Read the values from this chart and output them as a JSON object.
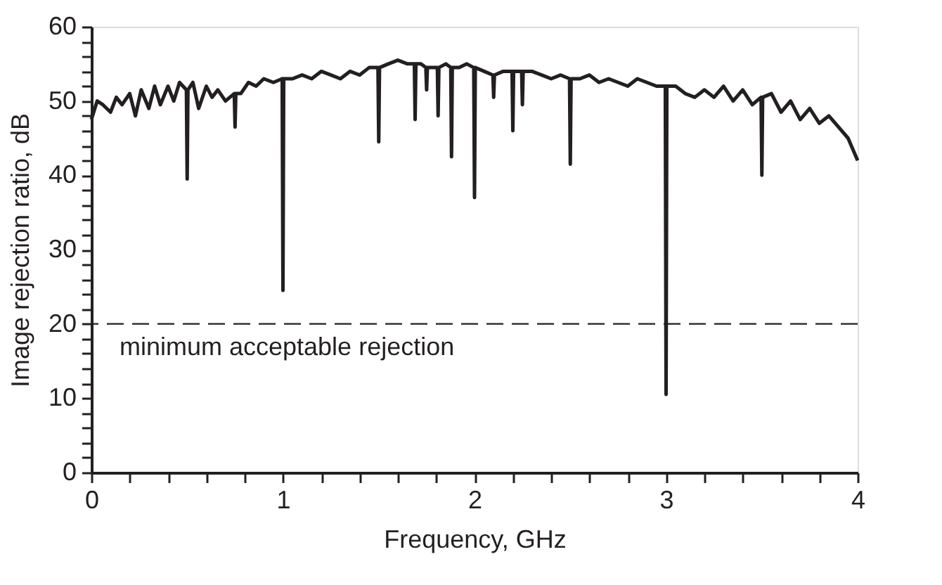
{
  "chart_data": {
    "type": "line",
    "xlabel": "Frequency, GHz",
    "ylabel": "Image rejection ratio, dB",
    "xlim": [
      0,
      4
    ],
    "ylim": [
      0,
      60
    ],
    "xticks": [
      0,
      {
        "value": 0.2,
        "label": null
      },
      {
        "value": 0.4,
        "label": null
      },
      {
        "value": 0.6,
        "label": null
      },
      {
        "value": 0.8,
        "label": null
      },
      1,
      {
        "value": 1.2,
        "label": null
      },
      {
        "value": 1.4,
        "label": null
      },
      {
        "value": 1.6,
        "label": null
      },
      {
        "value": 1.8,
        "label": null
      },
      2,
      {
        "value": 2.2,
        "label": null
      },
      {
        "value": 2.4,
        "label": null
      },
      {
        "value": 2.6,
        "label": null
      },
      {
        "value": 2.8,
        "label": null
      },
      3,
      {
        "value": 3.2,
        "label": null
      },
      {
        "value": 3.4,
        "label": null
      },
      {
        "value": 3.6,
        "label": null
      },
      {
        "value": 3.8,
        "label": null
      },
      4
    ],
    "yticks": [
      0,
      {
        "value": 2,
        "label": null
      },
      {
        "value": 4,
        "label": null
      },
      {
        "value": 6,
        "label": null
      },
      {
        "value": 8,
        "label": null
      },
      10,
      {
        "value": 12,
        "label": null
      },
      {
        "value": 14,
        "label": null
      },
      {
        "value": 16,
        "label": null
      },
      {
        "value": 18,
        "label": null
      },
      20,
      {
        "value": 22,
        "label": null
      },
      {
        "value": 24,
        "label": null
      },
      {
        "value": 26,
        "label": null
      },
      {
        "value": 28,
        "label": null
      },
      30,
      {
        "value": 32,
        "label": null
      },
      {
        "value": 34,
        "label": null
      },
      {
        "value": 36,
        "label": null
      },
      {
        "value": 38,
        "label": null
      },
      40,
      {
        "value": 42,
        "label": null
      },
      {
        "value": 44,
        "label": null
      },
      {
        "value": 46,
        "label": null
      },
      {
        "value": 48,
        "label": null
      },
      50,
      {
        "value": 52,
        "label": null
      },
      {
        "value": 54,
        "label": null
      },
      {
        "value": 56,
        "label": null
      },
      {
        "value": 58,
        "label": null
      },
      60
    ],
    "grid": false,
    "legend": false,
    "marker": "none",
    "line_style": "solid",
    "ref_lines": [
      {
        "axis": "y",
        "value": 20,
        "line_style": "dashed",
        "color": "#231f20"
      }
    ],
    "annotations": [
      "minimum acceptable rejection"
    ],
    "series": [
      {
        "color": "#231f20",
        "x": [
          0,
          0.03,
          0.06,
          0.1,
          0.13,
          0.16,
          0.2,
          0.23,
          0.26,
          0.3,
          0.33,
          0.36,
          0.4,
          0.43,
          0.46,
          0.496,
          0.5,
          0.504,
          0.53,
          0.56,
          0.6,
          0.63,
          0.66,
          0.7,
          0.746,
          0.75,
          0.754,
          0.78,
          0.82,
          0.86,
          0.9,
          0.95,
          0.996,
          1.0,
          1.004,
          1.05,
          1.1,
          1.15,
          1.2,
          1.25,
          1.3,
          1.35,
          1.4,
          1.45,
          1.496,
          1.5,
          1.504,
          1.55,
          1.6,
          1.65,
          1.686,
          1.69,
          1.694,
          1.72,
          1.746,
          1.75,
          1.754,
          1.78,
          1.806,
          1.81,
          1.814,
          1.85,
          1.876,
          1.88,
          1.884,
          1.92,
          1.96,
          1.996,
          2.0,
          2.004,
          2.05,
          2.096,
          2.1,
          2.104,
          2.15,
          2.196,
          2.2,
          2.204,
          2.246,
          2.25,
          2.254,
          2.3,
          2.35,
          2.4,
          2.45,
          2.496,
          2.5,
          2.504,
          2.55,
          2.6,
          2.65,
          2.7,
          2.75,
          2.8,
          2.85,
          2.9,
          2.95,
          2.996,
          3.0,
          3.004,
          3.05,
          3.1,
          3.15,
          3.2,
          3.25,
          3.3,
          3.35,
          3.4,
          3.45,
          3.496,
          3.5,
          3.504,
          3.55,
          3.6,
          3.65,
          3.7,
          3.75,
          3.8,
          3.85,
          3.9,
          3.95,
          4.0
        ],
        "values": [
          47.5,
          50,
          49.5,
          48.5,
          50.5,
          49.5,
          51,
          48,
          51.5,
          49,
          52,
          49.5,
          52,
          50,
          52.5,
          51.5,
          39.5,
          51.5,
          52.5,
          49,
          52,
          50.5,
          51.5,
          50,
          51,
          46.5,
          51,
          51,
          52.5,
          52,
          53,
          52.5,
          53,
          24.5,
          53,
          53,
          53.5,
          53,
          54,
          53.5,
          53,
          54,
          53.5,
          54.5,
          54.5,
          44.5,
          54.5,
          55,
          55.5,
          55,
          55,
          47.5,
          55,
          55,
          54.5,
          51.5,
          54.5,
          54.5,
          54.5,
          48,
          54.5,
          55,
          54.5,
          42.5,
          54.5,
          54.5,
          55,
          54.5,
          37,
          54.5,
          54,
          53.5,
          50.5,
          53.5,
          54,
          54,
          46,
          54,
          54,
          49.5,
          54,
          54,
          53.5,
          53,
          53.5,
          53,
          41.5,
          53,
          53,
          53.5,
          52.5,
          53,
          52.5,
          52,
          53,
          52.5,
          52,
          52,
          10.5,
          52,
          52,
          51,
          50.5,
          51.5,
          50.5,
          52,
          50,
          51.5,
          49.5,
          50.5,
          40,
          50.5,
          51,
          48.5,
          50,
          47.5,
          49,
          47,
          48,
          46.5,
          45,
          42
        ]
      }
    ]
  }
}
